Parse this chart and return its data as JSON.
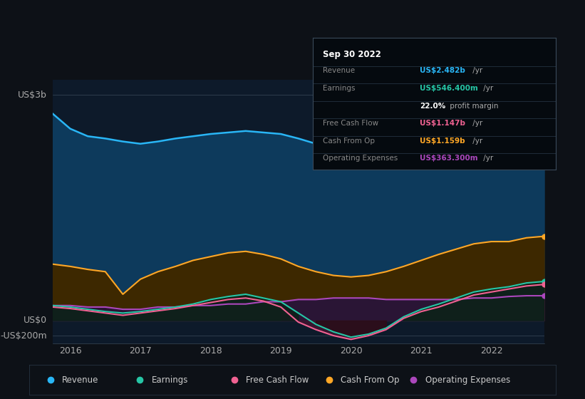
{
  "background_color": "#0d1117",
  "chart_bg_color": "#0d1a2a",
  "ylabel_top": "US$3b",
  "ylabel_zero": "US$0",
  "ylabel_neg": "-US$200m",
  "x_labels": [
    "2016",
    "2017",
    "2018",
    "2019",
    "2020",
    "2021",
    "2022"
  ],
  "years": [
    2015.75,
    2016.0,
    2016.25,
    2016.5,
    2016.75,
    2017.0,
    2017.25,
    2017.5,
    2017.75,
    2018.0,
    2018.25,
    2018.5,
    2018.75,
    2019.0,
    2019.25,
    2019.5,
    2019.75,
    2020.0,
    2020.25,
    2020.5,
    2020.75,
    2021.0,
    2021.25,
    2021.5,
    2021.75,
    2022.0,
    2022.25,
    2022.5,
    2022.75
  ],
  "revenue": [
    2.75,
    2.55,
    2.45,
    2.42,
    2.38,
    2.35,
    2.38,
    2.42,
    2.45,
    2.48,
    2.5,
    2.52,
    2.5,
    2.48,
    2.42,
    2.35,
    2.28,
    2.22,
    2.2,
    2.22,
    2.28,
    2.35,
    2.42,
    2.52,
    2.62,
    2.72,
    2.82,
    2.9,
    2.95
  ],
  "cash_from_op": [
    0.75,
    0.72,
    0.68,
    0.65,
    0.35,
    0.55,
    0.65,
    0.72,
    0.8,
    0.85,
    0.9,
    0.92,
    0.88,
    0.82,
    0.72,
    0.65,
    0.6,
    0.58,
    0.6,
    0.65,
    0.72,
    0.8,
    0.88,
    0.95,
    1.02,
    1.05,
    1.05,
    1.1,
    1.12
  ],
  "earnings": [
    0.2,
    0.18,
    0.15,
    0.12,
    0.1,
    0.12,
    0.15,
    0.18,
    0.22,
    0.28,
    0.32,
    0.35,
    0.3,
    0.25,
    0.1,
    -0.05,
    -0.15,
    -0.22,
    -0.18,
    -0.1,
    0.05,
    0.15,
    0.22,
    0.3,
    0.38,
    0.42,
    0.45,
    0.5,
    0.52
  ],
  "free_cash_flow": [
    0.18,
    0.16,
    0.13,
    0.1,
    0.07,
    0.1,
    0.13,
    0.16,
    0.2,
    0.24,
    0.28,
    0.3,
    0.26,
    0.18,
    -0.02,
    -0.12,
    -0.2,
    -0.25,
    -0.2,
    -0.12,
    0.03,
    0.12,
    0.18,
    0.26,
    0.34,
    0.38,
    0.42,
    0.46,
    0.48
  ],
  "op_expenses": [
    0.2,
    0.2,
    0.18,
    0.18,
    0.15,
    0.15,
    0.18,
    0.18,
    0.2,
    0.2,
    0.22,
    0.22,
    0.25,
    0.25,
    0.28,
    0.28,
    0.3,
    0.3,
    0.3,
    0.28,
    0.28,
    0.28,
    0.28,
    0.28,
    0.3,
    0.3,
    0.32,
    0.33,
    0.33
  ],
  "revenue_color": "#29b6f6",
  "revenue_fill": "#0d3a5c",
  "cash_from_op_color": "#ffa726",
  "cash_from_op_fill": "#3d2800",
  "earnings_color": "#26c6a6",
  "free_cash_flow_color": "#f06292",
  "op_expenses_color": "#ab47bc",
  "legend_items": [
    "Revenue",
    "Earnings",
    "Free Cash Flow",
    "Cash From Op",
    "Operating Expenses"
  ],
  "legend_colors": [
    "#29b6f6",
    "#26c6a6",
    "#f06292",
    "#ffa726",
    "#ab47bc"
  ],
  "tooltip_revenue_val": "#29b6f6",
  "tooltip_earnings_val": "#26c6a6",
  "tooltip_fcf_val": "#f06292",
  "tooltip_cfop_val": "#ffa726",
  "tooltip_opex_val": "#ab47bc"
}
